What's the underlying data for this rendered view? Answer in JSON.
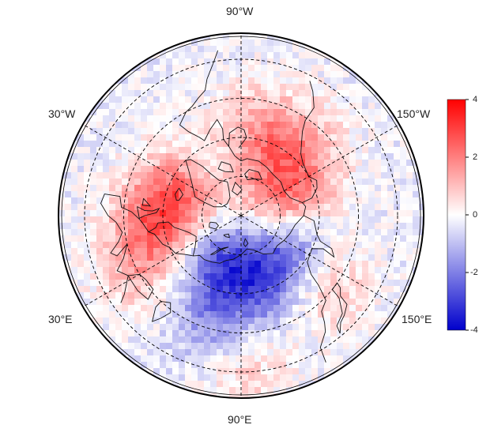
{
  "map": {
    "projection": "north-polar-stereographic",
    "longitude_labels": [
      "90°W",
      "30°W",
      "150°W",
      "30°E",
      "150°E",
      "90°E"
    ],
    "latitude_circles": "dashed",
    "meridians": "dashed"
  },
  "colorbar": {
    "ticks": [
      "4",
      "2",
      "0",
      "-2",
      "-4"
    ],
    "min": -4,
    "max": 4,
    "colors": {
      "low": "#0000cc",
      "mid": "#ffffff",
      "high": "#ff0000"
    }
  },
  "field_anomalies": [
    {
      "lon": -20,
      "lat": 66,
      "value": 2.8
    },
    {
      "lon": -50,
      "lat": 72,
      "value": -1.2
    },
    {
      "lon": 10,
      "lat": 58,
      "value": 2.0
    },
    {
      "lon": 60,
      "lat": 72,
      "value": -2.5
    },
    {
      "lon": 110,
      "lat": 62,
      "value": -1.5
    },
    {
      "lon": 150,
      "lat": 70,
      "value": -2.8
    },
    {
      "lon": -160,
      "lat": 70,
      "value": 2.2
    },
    {
      "lon": 170,
      "lat": 82,
      "value": 1.5
    },
    {
      "lon": -100,
      "lat": 58,
      "value": 1.5
    },
    {
      "lon": -130,
      "lat": 55,
      "value": 1.2
    },
    {
      "lon": 80,
      "lat": 45,
      "value": -1.8
    },
    {
      "lon": 90,
      "lat": 35,
      "value": 1.6
    },
    {
      "lon": 140,
      "lat": 50,
      "value": 1.5
    },
    {
      "lon": 30,
      "lat": 45,
      "value": 1.0
    }
  ]
}
